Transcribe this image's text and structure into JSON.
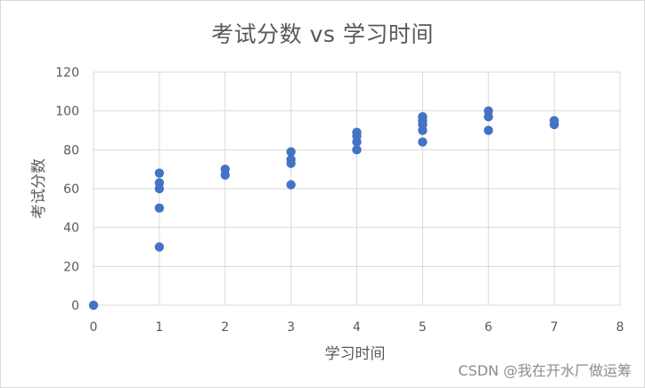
{
  "chart_data": {
    "type": "scatter",
    "title": "考试分数 vs 学习时间",
    "xlabel": "学习时间",
    "ylabel": "考试分数",
    "xlim": [
      0,
      8
    ],
    "ylim": [
      0,
      120
    ],
    "x_ticks": [
      0,
      1,
      2,
      3,
      4,
      5,
      6,
      7,
      8
    ],
    "y_ticks": [
      0,
      20,
      40,
      60,
      80,
      100,
      120
    ],
    "grid": {
      "vertical": true,
      "horizontal": true
    },
    "legend": "none",
    "marker_color": "#4472c4",
    "points": [
      {
        "x": 0,
        "y": 0
      },
      {
        "x": 1,
        "y": 30
      },
      {
        "x": 1,
        "y": 50
      },
      {
        "x": 1,
        "y": 60
      },
      {
        "x": 1,
        "y": 63
      },
      {
        "x": 1,
        "y": 68
      },
      {
        "x": 2,
        "y": 67
      },
      {
        "x": 2,
        "y": 70
      },
      {
        "x": 3,
        "y": 62
      },
      {
        "x": 3,
        "y": 73
      },
      {
        "x": 3,
        "y": 75
      },
      {
        "x": 3,
        "y": 79
      },
      {
        "x": 4,
        "y": 80
      },
      {
        "x": 4,
        "y": 84
      },
      {
        "x": 4,
        "y": 87
      },
      {
        "x": 4,
        "y": 89
      },
      {
        "x": 5,
        "y": 84
      },
      {
        "x": 5,
        "y": 90
      },
      {
        "x": 5,
        "y": 93
      },
      {
        "x": 5,
        "y": 95
      },
      {
        "x": 5,
        "y": 97
      },
      {
        "x": 6,
        "y": 90
      },
      {
        "x": 6,
        "y": 97
      },
      {
        "x": 6,
        "y": 100
      },
      {
        "x": 7,
        "y": 93
      },
      {
        "x": 7,
        "y": 95
      }
    ]
  },
  "watermark": "CSDN @我在开水厂做运筹"
}
